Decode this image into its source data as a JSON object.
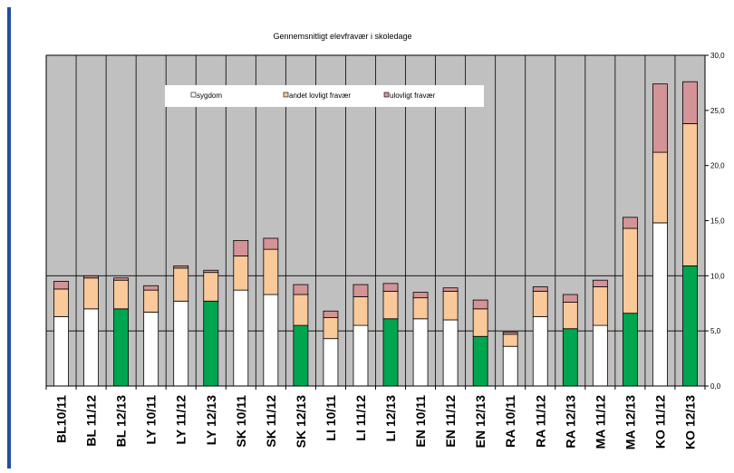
{
  "chart_data": {
    "type": "bar",
    "stacked": true,
    "title": "Gennemsnitligt elevfravær i skoledage",
    "categories": [
      "BL10/11",
      "BL 11/12",
      "BL 12/13",
      "LY 10/11",
      "LY 11/12",
      "LY 12/13",
      "SK 10/11",
      "SK 11/12",
      "SK 12/13",
      "LI 10/11",
      "LI 11/12",
      "LI 12/13",
      "EN 10/11",
      "EN 11/12",
      "EN 12/13",
      "RA 10/11",
      "RA 11/12",
      "RA 12/13",
      "MA 11/12",
      "MA 12/13",
      "KO 11/12",
      "KO 12/13"
    ],
    "highlight_categories": [
      "BL 12/13",
      "LY 12/13",
      "SK 12/13",
      "LI 12/13",
      "EN 12/13",
      "RA 12/13",
      "MA 12/13",
      "KO 12/13"
    ],
    "series": [
      {
        "name": "sygdom",
        "values": [
          6.3,
          7.0,
          7.0,
          6.7,
          7.7,
          7.7,
          8.7,
          8.3,
          5.5,
          4.3,
          5.5,
          6.1,
          6.1,
          6.0,
          4.5,
          3.6,
          6.3,
          5.2,
          5.5,
          6.6,
          14.8,
          10.9
        ]
      },
      {
        "name": "andet lovligt fravær",
        "values": [
          2.5,
          2.8,
          2.6,
          2.0,
          3.0,
          2.6,
          3.1,
          4.1,
          2.8,
          1.9,
          2.6,
          2.5,
          1.9,
          2.6,
          2.5,
          1.1,
          2.3,
          2.4,
          3.5,
          7.7,
          6.4,
          12.9
        ]
      },
      {
        "name": "ulovligt fravær",
        "values": [
          0.7,
          0.2,
          0.2,
          0.4,
          0.2,
          0.2,
          1.4,
          1.0,
          0.9,
          0.6,
          1.1,
          0.7,
          0.5,
          0.3,
          0.8,
          0.2,
          0.4,
          0.7,
          0.6,
          1.0,
          6.2,
          3.8
        ]
      }
    ],
    "ylim": [
      0,
      30
    ],
    "yticks": [
      "0,0",
      "5,0",
      "10,0",
      "15,0",
      "20,0",
      "25,0",
      "30,0"
    ],
    "y_axis_side": "right",
    "grid": true,
    "legend_placement": "top-left"
  },
  "colors": {
    "plot_bg": "#c0c0c0",
    "sygdom": "#ffffff",
    "sygdom_highlight": "#00a550",
    "andet": "#f9c99a",
    "ulovligt": "#d49396",
    "outline": "#000000",
    "blue_edge": "#1f4fa0"
  }
}
